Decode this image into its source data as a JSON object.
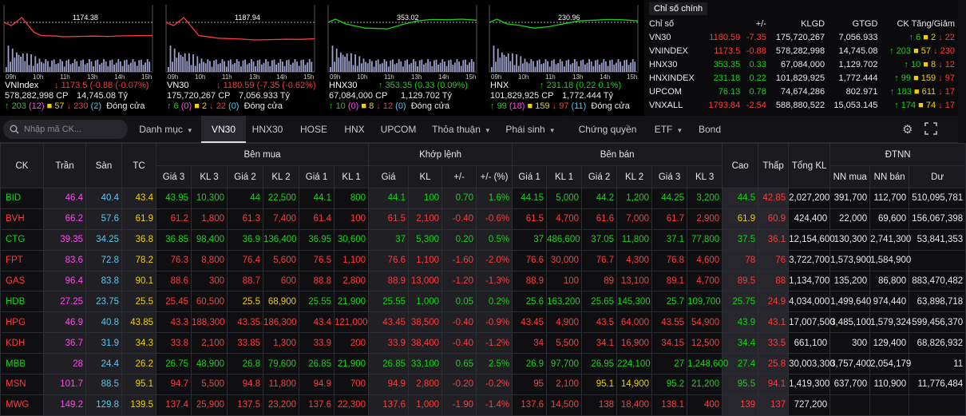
{
  "minicharts": [
    {
      "name": "VNIndex",
      "ref": "1174.38",
      "ref_label": "1174.38",
      "value": "1173.5",
      "change": "-0.88",
      "pct": "(-0.07%)",
      "dir": "dn",
      "vol": "578,282,998 CP",
      "val": "14,745.08 Tỷ",
      "adv": "203",
      "adv2": "(12)",
      "unch": "57",
      "dec": "230",
      "dec2": "(2)",
      "status": "Đóng cửa",
      "xticks": [
        "09h",
        "10h",
        "11h",
        "13h",
        "14h",
        "15h"
      ]
    },
    {
      "name": "VN30",
      "ref": "1187.94",
      "ref_label": "1187.94",
      "value": "1180.59",
      "change": "-7.35",
      "pct": "(-0.62%)",
      "dir": "dn",
      "vol": "175,720,267 CP",
      "val": "7,056.933 Tỷ",
      "adv": "6",
      "adv2": "(0)",
      "unch": "2",
      "dec": "22",
      "dec2": "(0)",
      "status": "Đóng cửa",
      "xticks": [
        "09h",
        "10h",
        "11h",
        "13h",
        "14h",
        "15h"
      ]
    },
    {
      "name": "HNX30",
      "ref": "353.02",
      "ref_label": "353.02",
      "value": "353.35",
      "change": "0.33",
      "pct": "(0.09%)",
      "dir": "up",
      "vol": "67,084,000 CP",
      "val": "1,129.702 Tỷ",
      "adv": "10",
      "adv2": "(0)",
      "unch": "8",
      "dec": "12",
      "dec2": "(0)",
      "status": "Đóng cửa",
      "xticks": [
        "09h",
        "10h",
        "11h",
        "13h",
        "14h",
        "15h"
      ]
    },
    {
      "name": "HNX",
      "ref": "230.96",
      "ref_label": "230.96",
      "value": "231.18",
      "change": "0.22",
      "pct": "0.1%)",
      "dir": "up",
      "vol": "101,829,925 CP",
      "val": "1,772.444 Tỷ",
      "adv": "99",
      "adv2": "(18)",
      "unch": "159",
      "dec": "97",
      "dec2": "(11)",
      "status": "Đóng cửa",
      "xticks": [
        "09h",
        "10h",
        "11h",
        "13h",
        "14h",
        "15h"
      ]
    }
  ],
  "index_box": {
    "tab_label": "Chỉ số chính",
    "headers": [
      "Chỉ số",
      "+/-",
      "KLGD",
      "GTGD",
      "CK Tăng/Giảm"
    ],
    "rows": [
      {
        "name": "VN30",
        "value": "1180.59",
        "change": "-7.35",
        "klgd": "175,720,267",
        "gtgd": "7,056.933",
        "up": "6",
        "ref": "2",
        "down": "22",
        "dir": "dn"
      },
      {
        "name": "VNINDEX",
        "value": "1173.5",
        "change": "-0.88",
        "klgd": "578,282,998",
        "gtgd": "14,745.08",
        "up": "203",
        "ref": "57",
        "down": "230",
        "dir": "dn"
      },
      {
        "name": "HNX30",
        "value": "353.35",
        "change": "0.33",
        "klgd": "67,084,000",
        "gtgd": "1,129.702",
        "up": "10",
        "ref": "8",
        "down": "12",
        "dir": "up"
      },
      {
        "name": "HNXINDEX",
        "value": "231.18",
        "change": "0.22",
        "klgd": "101,829,925",
        "gtgd": "1,772.444",
        "up": "99",
        "ref": "159",
        "down": "97",
        "dir": "up"
      },
      {
        "name": "UPCOM",
        "value": "76.13",
        "change": "0.78",
        "klgd": "74,674,286",
        "gtgd": "802.971",
        "up": "183",
        "ref": "611",
        "down": "17",
        "dir": "up"
      },
      {
        "name": "VNXALL",
        "value": "1793.84",
        "change": "-2.54",
        "klgd": "588,880,522",
        "gtgd": "15,053.145",
        "up": "174",
        "ref": "74",
        "down": "17",
        "dir": "dn"
      }
    ]
  },
  "nav": {
    "search_placeholder": "Nhập mã CK...",
    "tabs": [
      {
        "label": "Danh mục",
        "caret": true
      },
      {
        "label": "VN30",
        "active": true
      },
      {
        "label": "HNX30"
      },
      {
        "label": "HOSE"
      },
      {
        "label": "HNX"
      },
      {
        "label": "UPCOM"
      },
      {
        "label": "Thỏa thuận",
        "caret": true
      },
      {
        "label": "Phái sinh",
        "caret": true
      },
      {
        "label": "Chứng quyền"
      },
      {
        "label": "ETF",
        "caret": true
      },
      {
        "label": "Bond"
      }
    ]
  },
  "board": {
    "group_headers": {
      "ck": "CK",
      "tran": "Trần",
      "san": "Sàn",
      "tc": "TC",
      "ben_mua": "Bên mua",
      "khop_lenh": "Khớp lệnh",
      "ben_ban": "Bên bán",
      "cao": "Cao",
      "thap": "Thấp",
      "tong_kl": "Tổng KL",
      "dtnn": "ĐTNN"
    },
    "sub_headers": [
      "Giá 3",
      "KL 3",
      "Giá 2",
      "KL 2",
      "Giá 1",
      "KL 1",
      "Giá",
      "KL",
      "+/-",
      "+/- (%)",
      "Giá 1",
      "KL 1",
      "Giá 2",
      "KL 2",
      "Giá 3",
      "KL 3",
      "NN mua",
      "NN bán",
      "Dư"
    ],
    "rows": [
      [
        "BID",
        "46.4",
        "40.4",
        "43.4",
        "43.95",
        "10,300",
        "44",
        "22,500",
        "44.1",
        "800",
        "44.1",
        "100",
        "0.70",
        "1.6%",
        "44.15",
        "5,000",
        "44.2",
        "1,200",
        "44.25",
        "3,200",
        "44.5",
        "42.85",
        "2,027,200",
        "391,700",
        "112,700",
        "510,095,781"
      ],
      [
        "BVH",
        "66.2",
        "57.6",
        "61.9",
        "61.2",
        "1,800",
        "61.3",
        "7,400",
        "61.4",
        "100",
        "61.5",
        "2,100",
        "-0.40",
        "-0.6%",
        "61.5",
        "4,700",
        "61.6",
        "7,000",
        "61.7",
        "2,900",
        "61.9",
        "60.9",
        "424,400",
        "22,000",
        "69,600",
        "156,067,398"
      ],
      [
        "CTG",
        "39.35",
        "34.25",
        "36.8",
        "36.85",
        "98,400",
        "36.9",
        "136,400",
        "36.95",
        "30,600",
        "37",
        "5,300",
        "0.20",
        "0.5%",
        "37",
        "486,600",
        "37.05",
        "11,800",
        "37.1",
        "77,800",
        "37.5",
        "36.1",
        "12,154,600",
        "130,300",
        "2,741,300",
        "53,841,353"
      ],
      [
        "FPT",
        "83.6",
        "72.8",
        "78.2",
        "76.3",
        "8,800",
        "76.4",
        "5,600",
        "76.5",
        "1,100",
        "76.6",
        "1,100",
        "-1.60",
        "-2.0%",
        "76.6",
        "30,000",
        "76.7",
        "4,300",
        "76.8",
        "4,600",
        "78",
        "76",
        "3,722,700",
        "1,573,900",
        "1,584,900",
        ""
      ],
      [
        "GAS",
        "96.4",
        "83.8",
        "90.1",
        "88.6",
        "300",
        "88.7",
        "600",
        "88.8",
        "2,800",
        "88.9",
        "13,000",
        "-1.20",
        "-1.3%",
        "88.9",
        "100",
        "89",
        "13,100",
        "89.1",
        "4,700",
        "89.5",
        "88",
        "1,134,700",
        "135,200",
        "86,800",
        "883,470,482"
      ],
      [
        "HDB",
        "27.25",
        "23.75",
        "25.5",
        "25.45",
        "60,500",
        "25.5",
        "68,900",
        "25.55",
        "21,900",
        "25.55",
        "1,000",
        "0.05",
        "0.2%",
        "25.6",
        "163,200",
        "25.65",
        "145,300",
        "25.7",
        "109,700",
        "25.75",
        "24.9",
        "4,034,000",
        "1,499,640",
        "974,440",
        "63,898,718"
      ],
      [
        "HPG",
        "46.9",
        "40.8",
        "43.85",
        "43.3",
        "188,300",
        "43.35",
        "186,300",
        "43.4",
        "121,000",
        "43.45",
        "38,500",
        "-0.40",
        "-0.9%",
        "43.45",
        "4,900",
        "43.5",
        "64,000",
        "43.55",
        "54,900",
        "43.9",
        "43.1",
        "17,007,500",
        "3,485,100",
        "1,579,324",
        "599,456,370"
      ],
      [
        "KDH",
        "36.7",
        "31.9",
        "34.3",
        "33.8",
        "2,100",
        "33.85",
        "1,300",
        "33.9",
        "200",
        "33.9",
        "38,400",
        "-0.40",
        "-1.2%",
        "34",
        "5,500",
        "34.1",
        "16,900",
        "34.15",
        "12,500",
        "34.4",
        "33.5",
        "661,100",
        "300",
        "129,400",
        "68,826,932"
      ],
      [
        "MBB",
        "28",
        "24.4",
        "26.2",
        "26.75",
        "48,900",
        "26.8",
        "79,600",
        "26.85",
        "21,900",
        "26.85",
        "33,100",
        "0.65",
        "2.5%",
        "26.9",
        "97,700",
        "26.95",
        "224,100",
        "27",
        "1,248,600",
        "27.4",
        "25.8",
        "30,003,300",
        "3,757,400",
        "2,054,179",
        "11"
      ],
      [
        "MSN",
        "101.7",
        "88.5",
        "95.1",
        "94.7",
        "5,500",
        "94.8",
        "11,800",
        "94.9",
        "700",
        "94.9",
        "2,800",
        "-0.20",
        "-0.2%",
        "95",
        "2,100",
        "95.1",
        "14,900",
        "95.2",
        "21,200",
        "95.5",
        "94.1",
        "1,419,300",
        "637,700",
        "110,900",
        "11,776,484"
      ],
      [
        "MWG",
        "149.2",
        "129.8",
        "139.5",
        "137.4",
        "25,900",
        "137.5",
        "23,200",
        "137.6",
        "22,300",
        "137.6",
        "1,000",
        "-1.90",
        "-1.4%",
        "137.6",
        "14,500",
        "138",
        "18,400",
        "138.1",
        "400",
        "139",
        "137",
        "727,200",
        "",
        "",
        ""
      ]
    ]
  },
  "colors": {
    "up": "#18d318",
    "down": "#ff3b3b",
    "ref": "#f0d000",
    "ceiling": "#ff4af0",
    "floor": "#5ac8f0"
  }
}
